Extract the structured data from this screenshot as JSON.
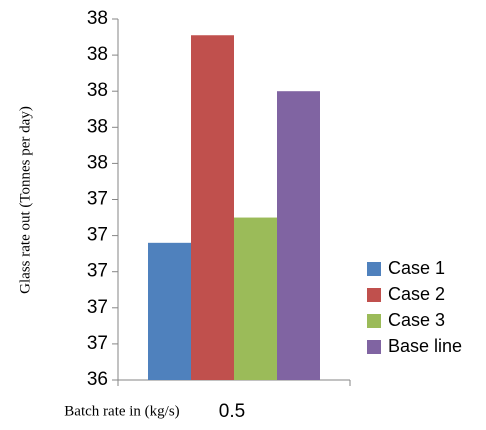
{
  "chart_data": {
    "type": "bar",
    "x_label": "Batch rate in (kg/s)",
    "y_label": "Glass rate out (Tonnes per day)",
    "categories": [
      "0.5"
    ],
    "series": [
      {
        "name": "Case 1",
        "color": "#4f81bd",
        "values": [
          37.16
        ]
      },
      {
        "name": "Case 2",
        "color": "#c0504d",
        "values": [
          38.31
        ]
      },
      {
        "name": "Case 3",
        "color": "#9bbb59",
        "values": [
          37.3
        ]
      },
      {
        "name": "Base line",
        "color": "#8064a2",
        "values": [
          38.0
        ]
      }
    ],
    "ylim": [
      36.4,
      38.4
    ],
    "yticks": [
      {
        "value": 36.4,
        "label": "36"
      },
      {
        "value": 36.6,
        "label": "37"
      },
      {
        "value": 36.8,
        "label": "37"
      },
      {
        "value": 37.0,
        "label": "37"
      },
      {
        "value": 37.2,
        "label": "37"
      },
      {
        "value": 37.4,
        "label": "37"
      },
      {
        "value": 37.6,
        "label": "38"
      },
      {
        "value": 37.8,
        "label": "38"
      },
      {
        "value": 38.0,
        "label": "38"
      },
      {
        "value": 38.2,
        "label": "38"
      },
      {
        "value": 38.4,
        "label": "38"
      }
    ],
    "legend": "right"
  }
}
